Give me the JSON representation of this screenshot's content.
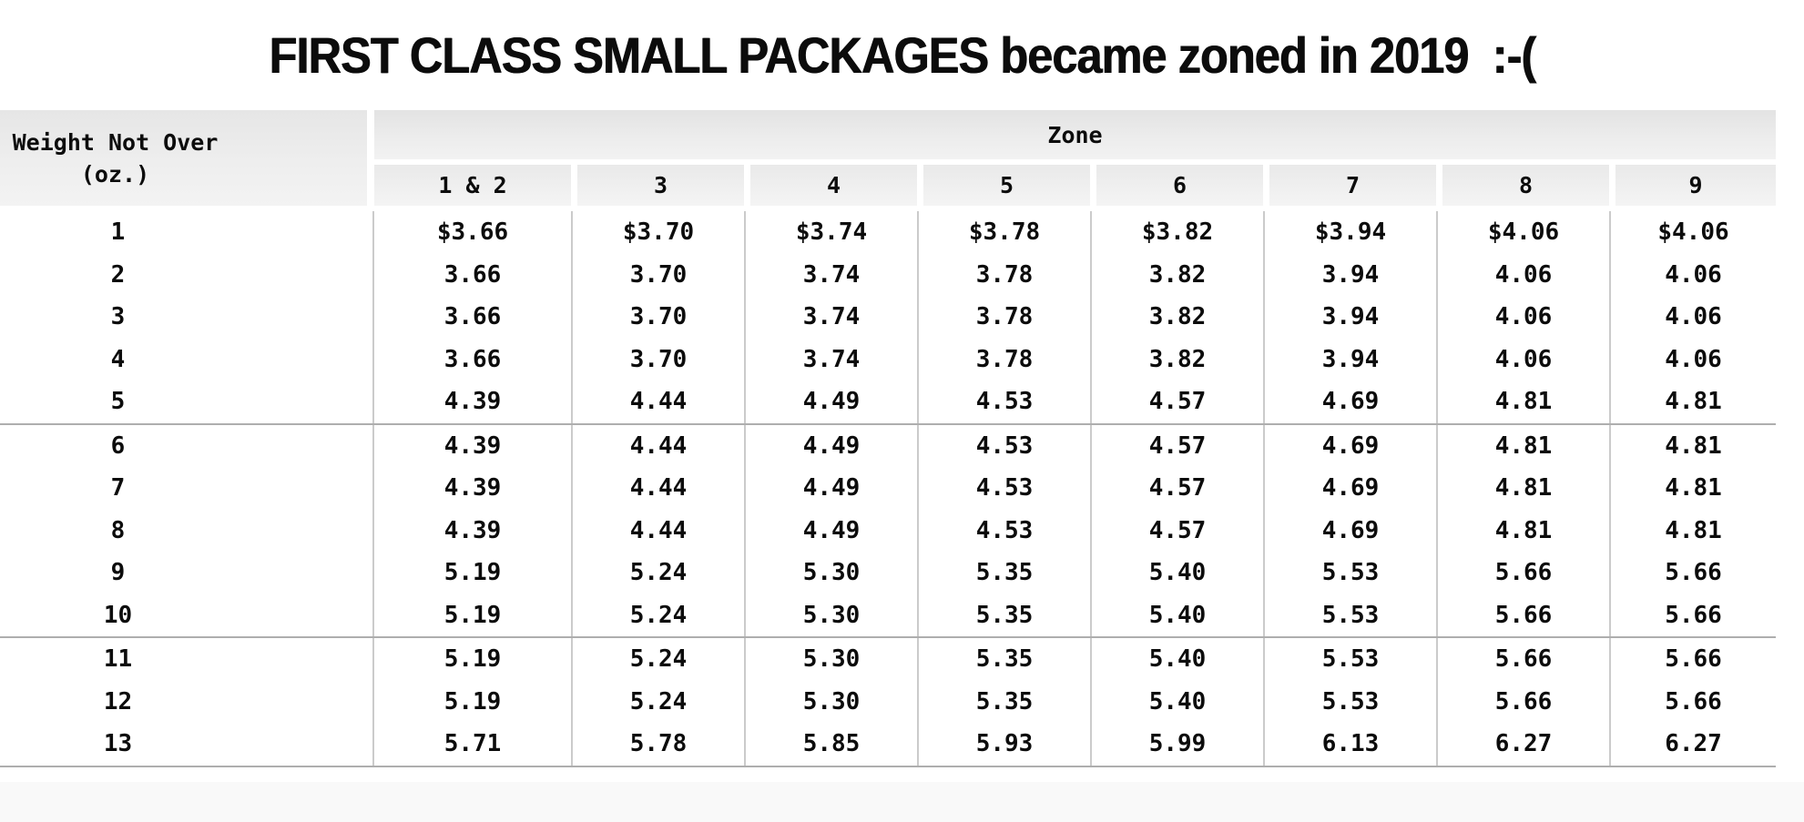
{
  "title": "FIRST CLASS SMALL PACKAGES became zoned in 2019  :-(",
  "table": {
    "weight_header": {
      "line1": "Weight Not Over",
      "line2": "(oz.)"
    },
    "zone_header": "Zone",
    "zone_columns": [
      "1 & 2",
      "3",
      "4",
      "5",
      "6",
      "7",
      "8",
      "9"
    ],
    "group_start_rows": [
      5,
      10
    ],
    "rows": [
      {
        "weight": "1",
        "rates": [
          "$3.66",
          "$3.70",
          "$3.74",
          "$3.78",
          "$3.82",
          "$3.94",
          "$4.06",
          "$4.06"
        ]
      },
      {
        "weight": "2",
        "rates": [
          "3.66",
          "3.70",
          "3.74",
          "3.78",
          "3.82",
          "3.94",
          "4.06",
          "4.06"
        ]
      },
      {
        "weight": "3",
        "rates": [
          "3.66",
          "3.70",
          "3.74",
          "3.78",
          "3.82",
          "3.94",
          "4.06",
          "4.06"
        ]
      },
      {
        "weight": "4",
        "rates": [
          "3.66",
          "3.70",
          "3.74",
          "3.78",
          "3.82",
          "3.94",
          "4.06",
          "4.06"
        ]
      },
      {
        "weight": "5",
        "rates": [
          "4.39",
          "4.44",
          "4.49",
          "4.53",
          "4.57",
          "4.69",
          "4.81",
          "4.81"
        ]
      },
      {
        "weight": "6",
        "rates": [
          "4.39",
          "4.44",
          "4.49",
          "4.53",
          "4.57",
          "4.69",
          "4.81",
          "4.81"
        ]
      },
      {
        "weight": "7",
        "rates": [
          "4.39",
          "4.44",
          "4.49",
          "4.53",
          "4.57",
          "4.69",
          "4.81",
          "4.81"
        ]
      },
      {
        "weight": "8",
        "rates": [
          "4.39",
          "4.44",
          "4.49",
          "4.53",
          "4.57",
          "4.69",
          "4.81",
          "4.81"
        ]
      },
      {
        "weight": "9",
        "rates": [
          "5.19",
          "5.24",
          "5.30",
          "5.35",
          "5.40",
          "5.53",
          "5.66",
          "5.66"
        ]
      },
      {
        "weight": "10",
        "rates": [
          "5.19",
          "5.24",
          "5.30",
          "5.35",
          "5.40",
          "5.53",
          "5.66",
          "5.66"
        ]
      },
      {
        "weight": "11",
        "rates": [
          "5.19",
          "5.24",
          "5.30",
          "5.35",
          "5.40",
          "5.53",
          "5.66",
          "5.66"
        ]
      },
      {
        "weight": "12",
        "rates": [
          "5.19",
          "5.24",
          "5.30",
          "5.35",
          "5.40",
          "5.53",
          "5.66",
          "5.66"
        ]
      },
      {
        "weight": "13",
        "rates": [
          "5.71",
          "5.78",
          "5.85",
          "5.93",
          "5.99",
          "6.13",
          "6.27",
          "6.27"
        ]
      }
    ]
  },
  "colors": {
    "header_background_top": "#e3e3e3",
    "header_background_bottom": "#f4f4f4",
    "column_separator": "#cbcbcb",
    "group_separator": "#aeaeae",
    "footer_strip": "#f9f9f9",
    "text": "#0c0c0c",
    "page_background": "#ffffff"
  },
  "chart_data": {
    "type": "table",
    "title": "FIRST CLASS SMALL PACKAGES became zoned in 2019  :-(",
    "column_group_label": "Zone",
    "columns": [
      "Weight Not Over (oz.)",
      "1 & 2",
      "3",
      "4",
      "5",
      "6",
      "7",
      "8",
      "9"
    ],
    "rows": [
      [
        1,
        3.66,
        3.7,
        3.74,
        3.78,
        3.82,
        3.94,
        4.06,
        4.06
      ],
      [
        2,
        3.66,
        3.7,
        3.74,
        3.78,
        3.82,
        3.94,
        4.06,
        4.06
      ],
      [
        3,
        3.66,
        3.7,
        3.74,
        3.78,
        3.82,
        3.94,
        4.06,
        4.06
      ],
      [
        4,
        3.66,
        3.7,
        3.74,
        3.78,
        3.82,
        3.94,
        4.06,
        4.06
      ],
      [
        5,
        4.39,
        4.44,
        4.49,
        4.53,
        4.57,
        4.69,
        4.81,
        4.81
      ],
      [
        6,
        4.39,
        4.44,
        4.49,
        4.53,
        4.57,
        4.69,
        4.81,
        4.81
      ],
      [
        7,
        4.39,
        4.44,
        4.49,
        4.53,
        4.57,
        4.69,
        4.81,
        4.81
      ],
      [
        8,
        4.39,
        4.44,
        4.49,
        4.53,
        4.57,
        4.69,
        4.81,
        4.81
      ],
      [
        9,
        5.19,
        5.24,
        5.3,
        5.35,
        5.4,
        5.53,
        5.66,
        5.66
      ],
      [
        10,
        5.19,
        5.24,
        5.3,
        5.35,
        5.4,
        5.53,
        5.66,
        5.66
      ],
      [
        11,
        5.19,
        5.24,
        5.3,
        5.35,
        5.4,
        5.53,
        5.66,
        5.66
      ],
      [
        12,
        5.19,
        5.24,
        5.3,
        5.35,
        5.4,
        5.53,
        5.66,
        5.66
      ],
      [
        13,
        5.71,
        5.78,
        5.85,
        5.93,
        5.99,
        6.13,
        6.27,
        6.27
      ]
    ],
    "units": "USD",
    "notes": "Row groups separated after weights 5 and 10"
  }
}
